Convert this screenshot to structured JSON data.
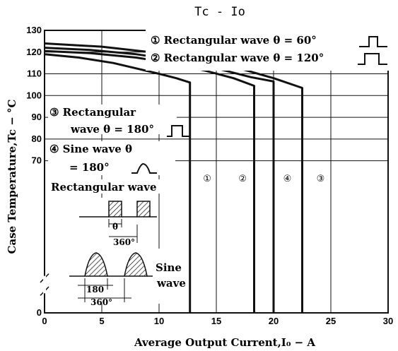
{
  "chart_data": {
    "type": "line",
    "title": "Tc - Io",
    "xlabel": "Average Output Current,I₀ − A",
    "ylabel": "Case Temperature,Tc − °C",
    "xlim": [
      0,
      30
    ],
    "ylim": [
      0,
      130
    ],
    "xticks": [
      0,
      5,
      10,
      15,
      20,
      25,
      30
    ],
    "yticks": [
      0,
      10,
      20,
      30,
      40,
      50,
      60,
      70,
      80,
      90,
      100,
      110,
      120,
      130
    ],
    "ytick_labels": [
      "0",
      "",
      "",
      "",
      "",
      "",
      "",
      "70",
      "80",
      "90",
      "100",
      "110",
      "120",
      "130"
    ],
    "axis_break": "y",
    "grid": true,
    "series": [
      {
        "id": "1",
        "x": [
          0,
          3,
          6,
          8,
          10,
          11.5,
          12.7,
          12.7
        ],
        "y": [
          119,
          117.5,
          115,
          112.5,
          110,
          108,
          106,
          0
        ]
      },
      {
        "id": "2",
        "x": [
          0,
          4,
          8,
          11,
          14,
          16.5,
          18.3,
          18.3
        ],
        "y": [
          120.5,
          119.5,
          117.5,
          115,
          111.5,
          108,
          104.5,
          0
        ]
      },
      {
        "id": "3",
        "x": [
          0,
          5,
          10,
          14,
          17,
          20,
          22.5,
          22.5
        ],
        "y": [
          124,
          122.5,
          119.5,
          116,
          112.5,
          108,
          103.5,
          0
        ]
      },
      {
        "id": "4",
        "x": [
          0,
          4,
          8,
          12,
          15,
          18,
          20,
          20
        ],
        "y": [
          122,
          121,
          119,
          116,
          112.5,
          108.5,
          106.5,
          0
        ]
      }
    ],
    "series_labels": [
      {
        "mark": "①",
        "x": 14.2,
        "y": 62
      },
      {
        "mark": "②",
        "x": 17.3,
        "y": 62
      },
      {
        "mark": "④",
        "x": 21.2,
        "y": 62
      },
      {
        "mark": "③",
        "x": 24.1,
        "y": 62
      }
    ],
    "legend": [
      {
        "mark": "①",
        "text": "Rectangular wave θ = 60°"
      },
      {
        "mark": "②",
        "text": "Rectangular wave θ = 120°"
      }
    ],
    "annotations": {
      "rect180_line1": "③ Rectangular",
      "rect180_line2": "wave θ = 180°",
      "sine_line1": "④ Sine wave θ",
      "sine_line2": "= 180°",
      "rect_wave_label": "Rectangular wave",
      "rect_theta": "θ",
      "rect_period": "360°",
      "sine_label1": "Sine",
      "sine_label2": "wave",
      "sine_width": "180",
      "sine_period": "360°"
    }
  }
}
